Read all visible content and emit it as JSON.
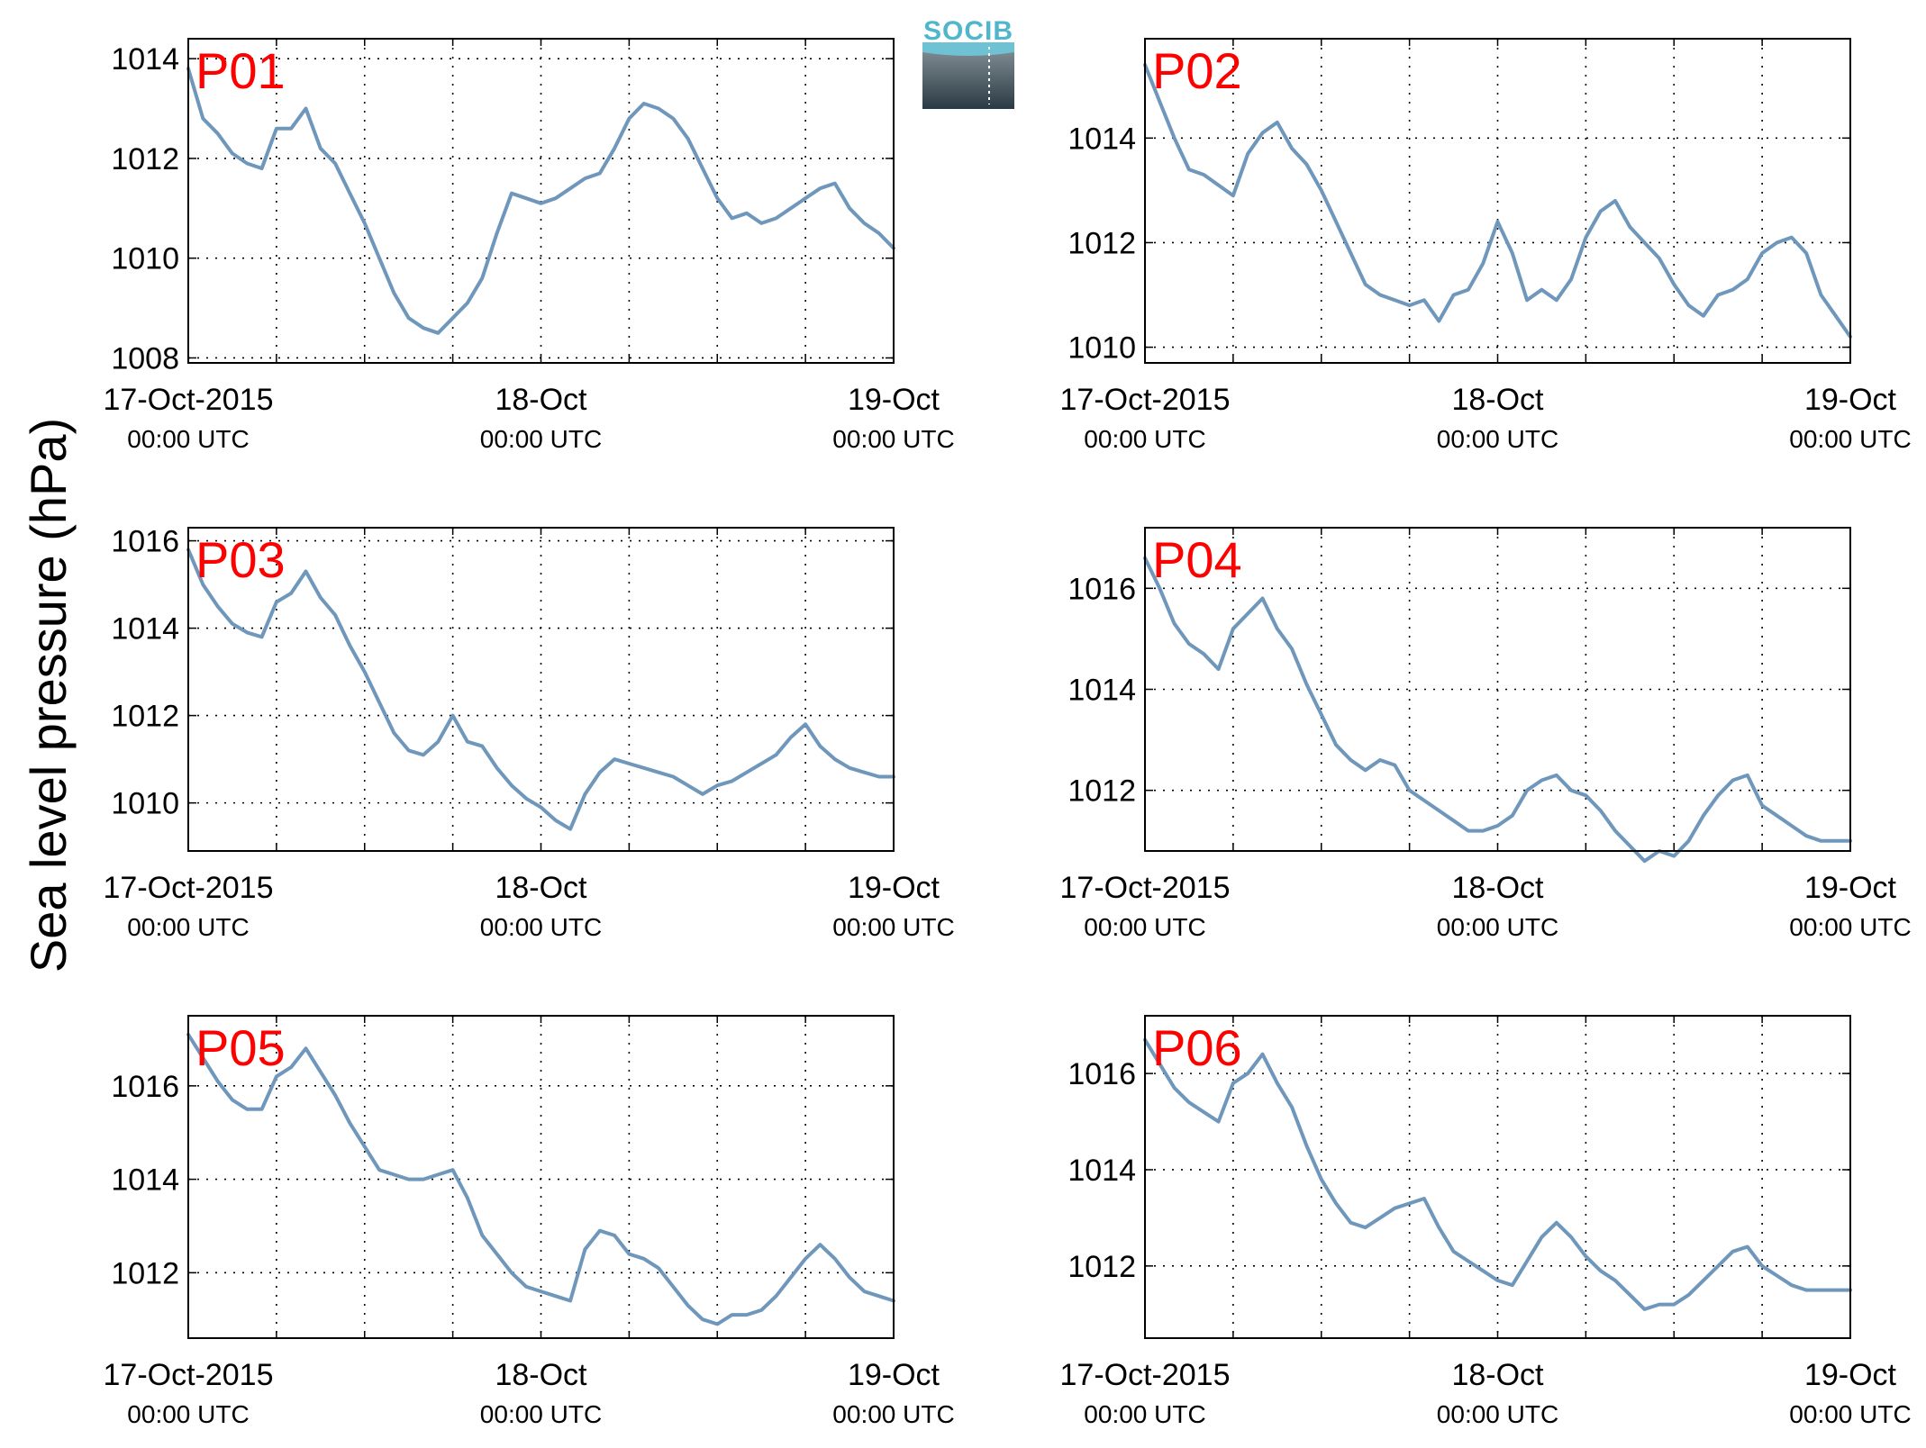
{
  "ylabel": "Sea level pressure (hPa)",
  "logo": {
    "text": "SOCIB",
    "color": "#4fb6cc"
  },
  "x_tick_labels": [
    {
      "main": "17-Oct-2015",
      "sub": "00:00 UTC"
    },
    {
      "main": "18-Oct",
      "sub": "00:00 UTC"
    },
    {
      "main": "19-Oct",
      "sub": "00:00 UTC"
    }
  ],
  "chart_data": [
    {
      "type": "line",
      "label": "P01",
      "xlim": [
        0,
        48
      ],
      "ylim": [
        1007.9,
        1014.4
      ],
      "yticks": [
        1008,
        1010,
        1012,
        1014
      ],
      "color": "#6f97bb",
      "x": [
        0,
        1,
        2,
        3,
        4,
        5,
        6,
        7,
        8,
        9,
        10,
        11,
        12,
        13,
        14,
        15,
        16,
        17,
        18,
        19,
        20,
        21,
        22,
        23,
        24,
        25,
        26,
        27,
        28,
        29,
        30,
        31,
        32,
        33,
        34,
        35,
        36,
        37,
        38,
        39,
        40,
        41,
        42,
        43,
        44,
        45,
        46,
        47,
        48
      ],
      "values": [
        1013.8,
        1012.8,
        1012.5,
        1012.1,
        1011.9,
        1011.8,
        1012.6,
        1012.6,
        1013.0,
        1012.2,
        1011.9,
        1011.3,
        1010.7,
        1010.0,
        1009.3,
        1008.8,
        1008.6,
        1008.5,
        1008.8,
        1009.1,
        1009.6,
        1010.5,
        1011.3,
        1011.2,
        1011.1,
        1011.2,
        1011.4,
        1011.6,
        1011.7,
        1012.2,
        1012.8,
        1013.1,
        1013.0,
        1012.8,
        1012.4,
        1011.8,
        1011.2,
        1010.8,
        1010.9,
        1010.7,
        1010.8,
        1011.0,
        1011.2,
        1011.4,
        1011.5,
        1011.0,
        1010.7,
        1010.5,
        1010.2
      ]
    },
    {
      "type": "line",
      "label": "P02",
      "xlim": [
        0,
        48
      ],
      "ylim": [
        1009.7,
        1015.9
      ],
      "yticks": [
        1010,
        1012,
        1014
      ],
      "color": "#6f97bb",
      "x": [
        0,
        1,
        2,
        3,
        4,
        5,
        6,
        7,
        8,
        9,
        10,
        11,
        12,
        13,
        14,
        15,
        16,
        17,
        18,
        19,
        20,
        21,
        22,
        23,
        24,
        25,
        26,
        27,
        28,
        29,
        30,
        31,
        32,
        33,
        34,
        35,
        36,
        37,
        38,
        39,
        40,
        41,
        42,
        43,
        44,
        45,
        46,
        47,
        48
      ],
      "values": [
        1015.4,
        1014.7,
        1014.0,
        1013.4,
        1013.3,
        1013.1,
        1012.9,
        1013.7,
        1014.1,
        1014.3,
        1013.8,
        1013.5,
        1013.0,
        1012.4,
        1011.8,
        1011.2,
        1011.0,
        1010.9,
        1010.8,
        1010.9,
        1010.5,
        1011.0,
        1011.1,
        1011.6,
        1012.4,
        1011.8,
        1010.9,
        1011.1,
        1010.9,
        1011.3,
        1012.1,
        1012.6,
        1012.8,
        1012.3,
        1012.0,
        1011.7,
        1011.2,
        1010.8,
        1010.6,
        1011.0,
        1011.1,
        1011.3,
        1011.8,
        1012.0,
        1012.1,
        1011.8,
        1011.0,
        1010.6,
        1010.2
      ]
    },
    {
      "type": "line",
      "label": "P03",
      "xlim": [
        0,
        48
      ],
      "ylim": [
        1008.9,
        1016.3
      ],
      "yticks": [
        1010,
        1012,
        1014,
        1016
      ],
      "color": "#6f97bb",
      "x": [
        0,
        1,
        2,
        3,
        4,
        5,
        6,
        7,
        8,
        9,
        10,
        11,
        12,
        13,
        14,
        15,
        16,
        17,
        18,
        19,
        20,
        21,
        22,
        23,
        24,
        25,
        26,
        27,
        28,
        29,
        30,
        31,
        32,
        33,
        34,
        35,
        36,
        37,
        38,
        39,
        40,
        41,
        42,
        43,
        44,
        45,
        46,
        47,
        48
      ],
      "values": [
        1015.8,
        1015.0,
        1014.5,
        1014.1,
        1013.9,
        1013.8,
        1014.6,
        1014.8,
        1015.3,
        1014.7,
        1014.3,
        1013.6,
        1013.0,
        1012.3,
        1011.6,
        1011.2,
        1011.1,
        1011.4,
        1012.0,
        1011.4,
        1011.3,
        1010.8,
        1010.4,
        1010.1,
        1009.9,
        1009.6,
        1009.4,
        1010.2,
        1010.7,
        1011.0,
        1010.9,
        1010.8,
        1010.7,
        1010.6,
        1010.4,
        1010.2,
        1010.4,
        1010.5,
        1010.7,
        1010.9,
        1011.1,
        1011.5,
        1011.8,
        1011.3,
        1011.0,
        1010.8,
        1010.7,
        1010.6,
        1010.6
      ]
    },
    {
      "type": "line",
      "label": "P04",
      "xlim": [
        0,
        48
      ],
      "ylim": [
        1010.8,
        1017.2
      ],
      "yticks": [
        1012,
        1014,
        1016
      ],
      "color": "#6f97bb",
      "x": [
        0,
        1,
        2,
        3,
        4,
        5,
        6,
        7,
        8,
        9,
        10,
        11,
        12,
        13,
        14,
        15,
        16,
        17,
        18,
        19,
        20,
        21,
        22,
        23,
        24,
        25,
        26,
        27,
        28,
        29,
        30,
        31,
        32,
        33,
        34,
        35,
        36,
        37,
        38,
        39,
        40,
        41,
        42,
        43,
        44,
        45,
        46,
        47,
        48
      ],
      "values": [
        1016.6,
        1016.0,
        1015.3,
        1014.9,
        1014.7,
        1014.4,
        1015.2,
        1015.5,
        1015.8,
        1015.2,
        1014.8,
        1014.1,
        1013.5,
        1012.9,
        1012.6,
        1012.4,
        1012.6,
        1012.5,
        1012.0,
        1011.8,
        1011.6,
        1011.4,
        1011.2,
        1011.2,
        1011.3,
        1011.5,
        1012.0,
        1012.2,
        1012.3,
        1012.0,
        1011.9,
        1011.6,
        1011.2,
        1010.9,
        1010.6,
        1010.8,
        1010.7,
        1011.0,
        1011.5,
        1011.9,
        1012.2,
        1012.3,
        1011.7,
        1011.5,
        1011.3,
        1011.1,
        1011.0,
        1011.0,
        1011.0
      ]
    },
    {
      "type": "line",
      "label": "P05",
      "xlim": [
        0,
        48
      ],
      "ylim": [
        1010.6,
        1017.5
      ],
      "yticks": [
        1012,
        1014,
        1016
      ],
      "color": "#6f97bb",
      "x": [
        0,
        1,
        2,
        3,
        4,
        5,
        6,
        7,
        8,
        9,
        10,
        11,
        12,
        13,
        14,
        15,
        16,
        17,
        18,
        19,
        20,
        21,
        22,
        23,
        24,
        25,
        26,
        27,
        28,
        29,
        30,
        31,
        32,
        33,
        34,
        35,
        36,
        37,
        38,
        39,
        40,
        41,
        42,
        43,
        44,
        45,
        46,
        47,
        48
      ],
      "values": [
        1017.1,
        1016.6,
        1016.1,
        1015.7,
        1015.5,
        1015.5,
        1016.2,
        1016.4,
        1016.8,
        1016.3,
        1015.8,
        1015.2,
        1014.7,
        1014.2,
        1014.1,
        1014.0,
        1014.0,
        1014.1,
        1014.2,
        1013.6,
        1012.8,
        1012.4,
        1012.0,
        1011.7,
        1011.6,
        1011.5,
        1011.4,
        1012.5,
        1012.9,
        1012.8,
        1012.4,
        1012.3,
        1012.1,
        1011.7,
        1011.3,
        1011.0,
        1010.9,
        1011.1,
        1011.1,
        1011.2,
        1011.5,
        1011.9,
        1012.3,
        1012.6,
        1012.3,
        1011.9,
        1011.6,
        1011.5,
        1011.4
      ]
    },
    {
      "type": "line",
      "label": "P06",
      "xlim": [
        0,
        48
      ],
      "ylim": [
        1010.5,
        1017.2
      ],
      "yticks": [
        1012,
        1014,
        1016
      ],
      "color": "#6f97bb",
      "x": [
        0,
        1,
        2,
        3,
        4,
        5,
        6,
        7,
        8,
        9,
        10,
        11,
        12,
        13,
        14,
        15,
        16,
        17,
        18,
        19,
        20,
        21,
        22,
        23,
        24,
        25,
        26,
        27,
        28,
        29,
        30,
        31,
        32,
        33,
        34,
        35,
        36,
        37,
        38,
        39,
        40,
        41,
        42,
        43,
        44,
        45,
        46,
        47,
        48
      ],
      "values": [
        1016.7,
        1016.2,
        1015.7,
        1015.4,
        1015.2,
        1015.0,
        1015.8,
        1016.0,
        1016.4,
        1015.8,
        1015.3,
        1014.5,
        1013.8,
        1013.3,
        1012.9,
        1012.8,
        1013.0,
        1013.2,
        1013.3,
        1013.4,
        1012.8,
        1012.3,
        1012.1,
        1011.9,
        1011.7,
        1011.6,
        1012.1,
        1012.6,
        1012.9,
        1012.6,
        1012.2,
        1011.9,
        1011.7,
        1011.4,
        1011.1,
        1011.2,
        1011.2,
        1011.4,
        1011.7,
        1012.0,
        1012.3,
        1012.4,
        1012.0,
        1011.8,
        1011.6,
        1011.5,
        1011.5,
        1011.5,
        1011.5
      ]
    }
  ]
}
